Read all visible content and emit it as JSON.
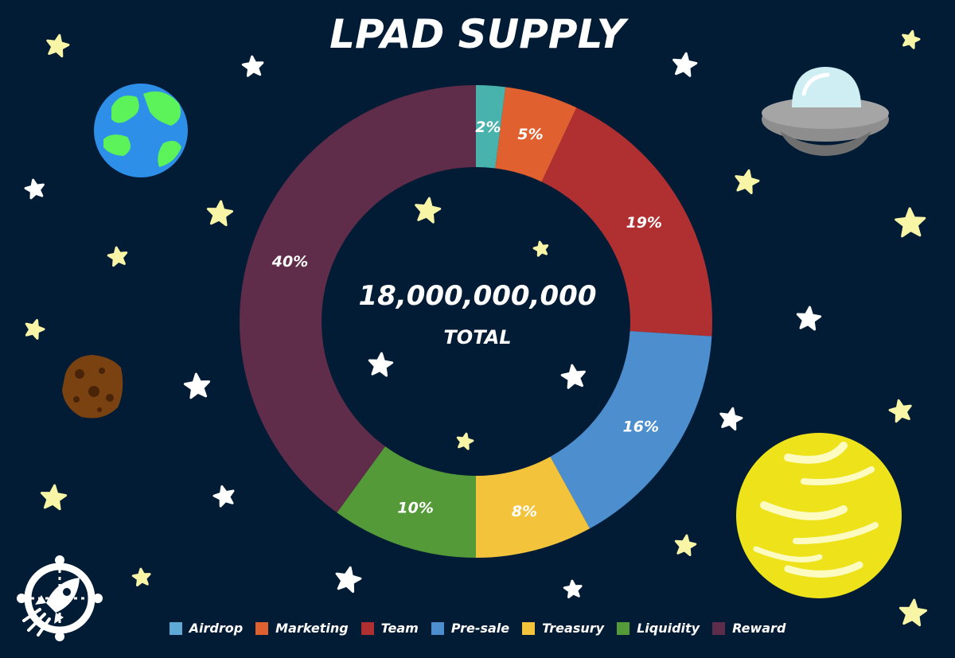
{
  "title": "LPAD SUPPLY",
  "center": {
    "total": "18,000,000,000",
    "label": "TOTAL"
  },
  "chart_data": {
    "type": "pie",
    "title": "LPAD SUPPLY",
    "donut": true,
    "legend_position": "bottom",
    "slices": [
      {
        "name": "Airdrop",
        "value": 2,
        "label": "2%",
        "color": "#48b3ad",
        "legend_color": "#5ea9d6"
      },
      {
        "name": "Marketing",
        "value": 5,
        "label": "5%",
        "color": "#e06030",
        "legend_color": "#e06030"
      },
      {
        "name": "Team",
        "value": 19,
        "label": "19%",
        "color": "#b03032",
        "legend_color": "#b03032"
      },
      {
        "name": "Pre-sale",
        "value": 16,
        "label": "16%",
        "color": "#4d8fce",
        "legend_color": "#4d8fce"
      },
      {
        "name": "Treasury",
        "value": 8,
        "label": "8%",
        "color": "#f2c33b",
        "legend_color": "#f2c33b"
      },
      {
        "name": "Liquidity",
        "value": 10,
        "label": "10%",
        "color": "#559a38",
        "legend_color": "#559a38"
      },
      {
        "name": "Reward",
        "value": 40,
        "label": "40%",
        "color": "#5f2c49",
        "legend_color": "#5f2c49"
      }
    ]
  }
}
